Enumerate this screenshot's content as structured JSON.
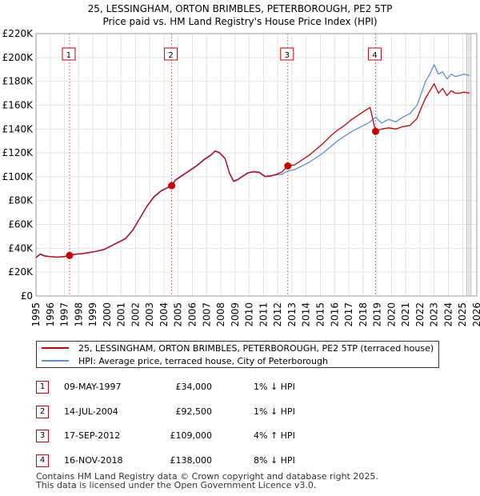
{
  "title_line1": "25, LESSINGHAM, ORTON BRIMBLES, PETERBOROUGH, PE2 5TP",
  "title_line2": "Price paid vs. HM Land Registry's House Price Index (HPI)",
  "chart_data": {
    "type": "line",
    "xlim": [
      1995,
      2026
    ],
    "ylim": [
      0,
      220000
    ],
    "x_ticks": [
      1995,
      1996,
      1997,
      1998,
      1999,
      2000,
      2001,
      2002,
      2003,
      2004,
      2005,
      2006,
      2007,
      2008,
      2009,
      2010,
      2011,
      2012,
      2013,
      2014,
      2015,
      2016,
      2017,
      2018,
      2019,
      2020,
      2021,
      2022,
      2023,
      2024,
      2025,
      2026
    ],
    "y_ticks": [
      {
        "value": 0,
        "label": "£0"
      },
      {
        "value": 20000,
        "label": "£20K"
      },
      {
        "value": 40000,
        "label": "£40K"
      },
      {
        "value": 60000,
        "label": "£60K"
      },
      {
        "value": 80000,
        "label": "£80K"
      },
      {
        "value": 100000,
        "label": "£100K"
      },
      {
        "value": 120000,
        "label": "£120K"
      },
      {
        "value": 140000,
        "label": "£140K"
      },
      {
        "value": 160000,
        "label": "£160K"
      },
      {
        "value": 180000,
        "label": "£180K"
      },
      {
        "value": 200000,
        "label": "£200K"
      },
      {
        "value": 220000,
        "label": "£220K"
      }
    ],
    "forecast_from": 2025.3,
    "series": [
      {
        "name": "25, LESSINGHAM, ORTON BRIMBLES, PETERBOROUGH, PE2 5TP (terraced house)",
        "color": "#cc0000",
        "x": [
          1995,
          1995.3,
          1995.6,
          1996,
          1996.5,
          1997,
          1997.36,
          1997.8,
          1998.3,
          1998.8,
          1999.3,
          1999.8,
          2000.3,
          2000.8,
          2001.3,
          2001.8,
          2002.3,
          2002.8,
          2003.3,
          2003.8,
          2004.3,
          2004.54,
          2004.8,
          2005.3,
          2005.8,
          2006.3,
          2006.8,
          2007.3,
          2007.6,
          2007.9,
          2008.3,
          2008.6,
          2008.9,
          2009.2,
          2009.5,
          2009.9,
          2010.3,
          2010.7,
          2011.1,
          2011.5,
          2011.9,
          2012.3,
          2012.71,
          2013.2,
          2013.7,
          2014.2,
          2014.7,
          2015.2,
          2015.7,
          2016.2,
          2016.7,
          2017.2,
          2017.7,
          2018.2,
          2018.5,
          2018.88,
          2019.3,
          2019.8,
          2020.3,
          2020.8,
          2021.3,
          2021.8,
          2022.1,
          2022.4,
          2022.7,
          2023.0,
          2023.3,
          2023.6,
          2023.9,
          2024.2,
          2024.5,
          2024.8,
          2025.1,
          2025.5
        ],
        "values": [
          32000,
          35000,
          33500,
          33000,
          32500,
          33000,
          34000,
          35000,
          35500,
          36500,
          37500,
          39000,
          42000,
          45000,
          48000,
          55000,
          65000,
          75000,
          83000,
          88000,
          91000,
          92500,
          97000,
          101000,
          105000,
          109000,
          114000,
          118000,
          121500,
          120000,
          115000,
          103000,
          96000,
          97500,
          100000,
          103000,
          104000,
          103500,
          100000,
          100500,
          102000,
          104000,
          109000,
          110000,
          114000,
          118000,
          123000,
          128000,
          134000,
          139000,
          143000,
          148000,
          152000,
          156000,
          158000,
          138000,
          140000,
          141000,
          140000,
          142000,
          143000,
          149000,
          158000,
          166000,
          172000,
          178000,
          170000,
          174000,
          168000,
          172000,
          170000,
          170000,
          171000,
          170000
        ]
      },
      {
        "name": "HPI: Average price, terraced house, City of Peterborough",
        "color": "#5b8fcf",
        "x": [
          1995,
          1995.3,
          1995.6,
          1996,
          1996.5,
          1997,
          1997.36,
          1997.8,
          1998.3,
          1998.8,
          1999.3,
          1999.8,
          2000.3,
          2000.8,
          2001.3,
          2001.8,
          2002.3,
          2002.8,
          2003.3,
          2003.8,
          2004.3,
          2004.54,
          2004.8,
          2005.3,
          2005.8,
          2006.3,
          2006.8,
          2007.3,
          2007.6,
          2007.9,
          2008.3,
          2008.6,
          2008.9,
          2009.2,
          2009.5,
          2009.9,
          2010.3,
          2010.7,
          2011.1,
          2011.5,
          2011.9,
          2012.3,
          2012.71,
          2013.2,
          2013.7,
          2014.2,
          2014.7,
          2015.2,
          2015.7,
          2016.2,
          2016.7,
          2017.2,
          2017.7,
          2018.2,
          2018.5,
          2018.88,
          2019.3,
          2019.8,
          2020.3,
          2020.8,
          2021.3,
          2021.8,
          2022.1,
          2022.4,
          2022.7,
          2023.0,
          2023.3,
          2023.6,
          2023.9,
          2024.2,
          2024.5,
          2024.8,
          2025.1,
          2025.5
        ],
        "values": [
          32500,
          35500,
          34000,
          33000,
          32800,
          33200,
          34300,
          35300,
          35800,
          36800,
          37800,
          39300,
          42300,
          45400,
          48500,
          55500,
          65500,
          75500,
          83500,
          88500,
          91500,
          93400,
          97500,
          101500,
          105500,
          109500,
          114500,
          118500,
          121800,
          120500,
          115500,
          103500,
          96500,
          98000,
          100500,
          103500,
          104500,
          104000,
          100500,
          101000,
          101500,
          102000,
          104800,
          106000,
          109000,
          112000,
          116000,
          120000,
          125000,
          130000,
          134000,
          138000,
          141000,
          144000,
          146000,
          150000,
          145000,
          148000,
          146000,
          150000,
          153000,
          160000,
          170000,
          180000,
          186000,
          194000,
          186000,
          188000,
          182000,
          186000,
          184000,
          185000,
          186000,
          185000
        ]
      }
    ],
    "markers": [
      {
        "label": "1",
        "x": 1997.36,
        "y": 34000
      },
      {
        "label": "2",
        "x": 2004.54,
        "y": 92500
      },
      {
        "label": "3",
        "x": 2012.71,
        "y": 109000
      },
      {
        "label": "4",
        "x": 2018.88,
        "y": 138000
      }
    ]
  },
  "legend": {
    "red_label": "25, LESSINGHAM, ORTON BRIMBLES, PETERBOROUGH, PE2 5TP (terraced house)",
    "blue_label": "HPI: Average price, terraced house, City of Peterborough"
  },
  "sales": [
    {
      "num": "1",
      "date": "09-MAY-1997",
      "price": "£34,000",
      "hpi": "1% ↓ HPI"
    },
    {
      "num": "2",
      "date": "14-JUL-2004",
      "price": "£92,500",
      "hpi": "1% ↓ HPI"
    },
    {
      "num": "3",
      "date": "17-SEP-2012",
      "price": "£109,000",
      "hpi": "4% ↑ HPI"
    },
    {
      "num": "4",
      "date": "16-NOV-2018",
      "price": "£138,000",
      "hpi": "8% ↓ HPI"
    }
  ],
  "footer": {
    "line1": "Contains HM Land Registry data © Crown copyright and database right 2025.",
    "line2": "This data is licensed under the Open Government Licence v3.0."
  }
}
